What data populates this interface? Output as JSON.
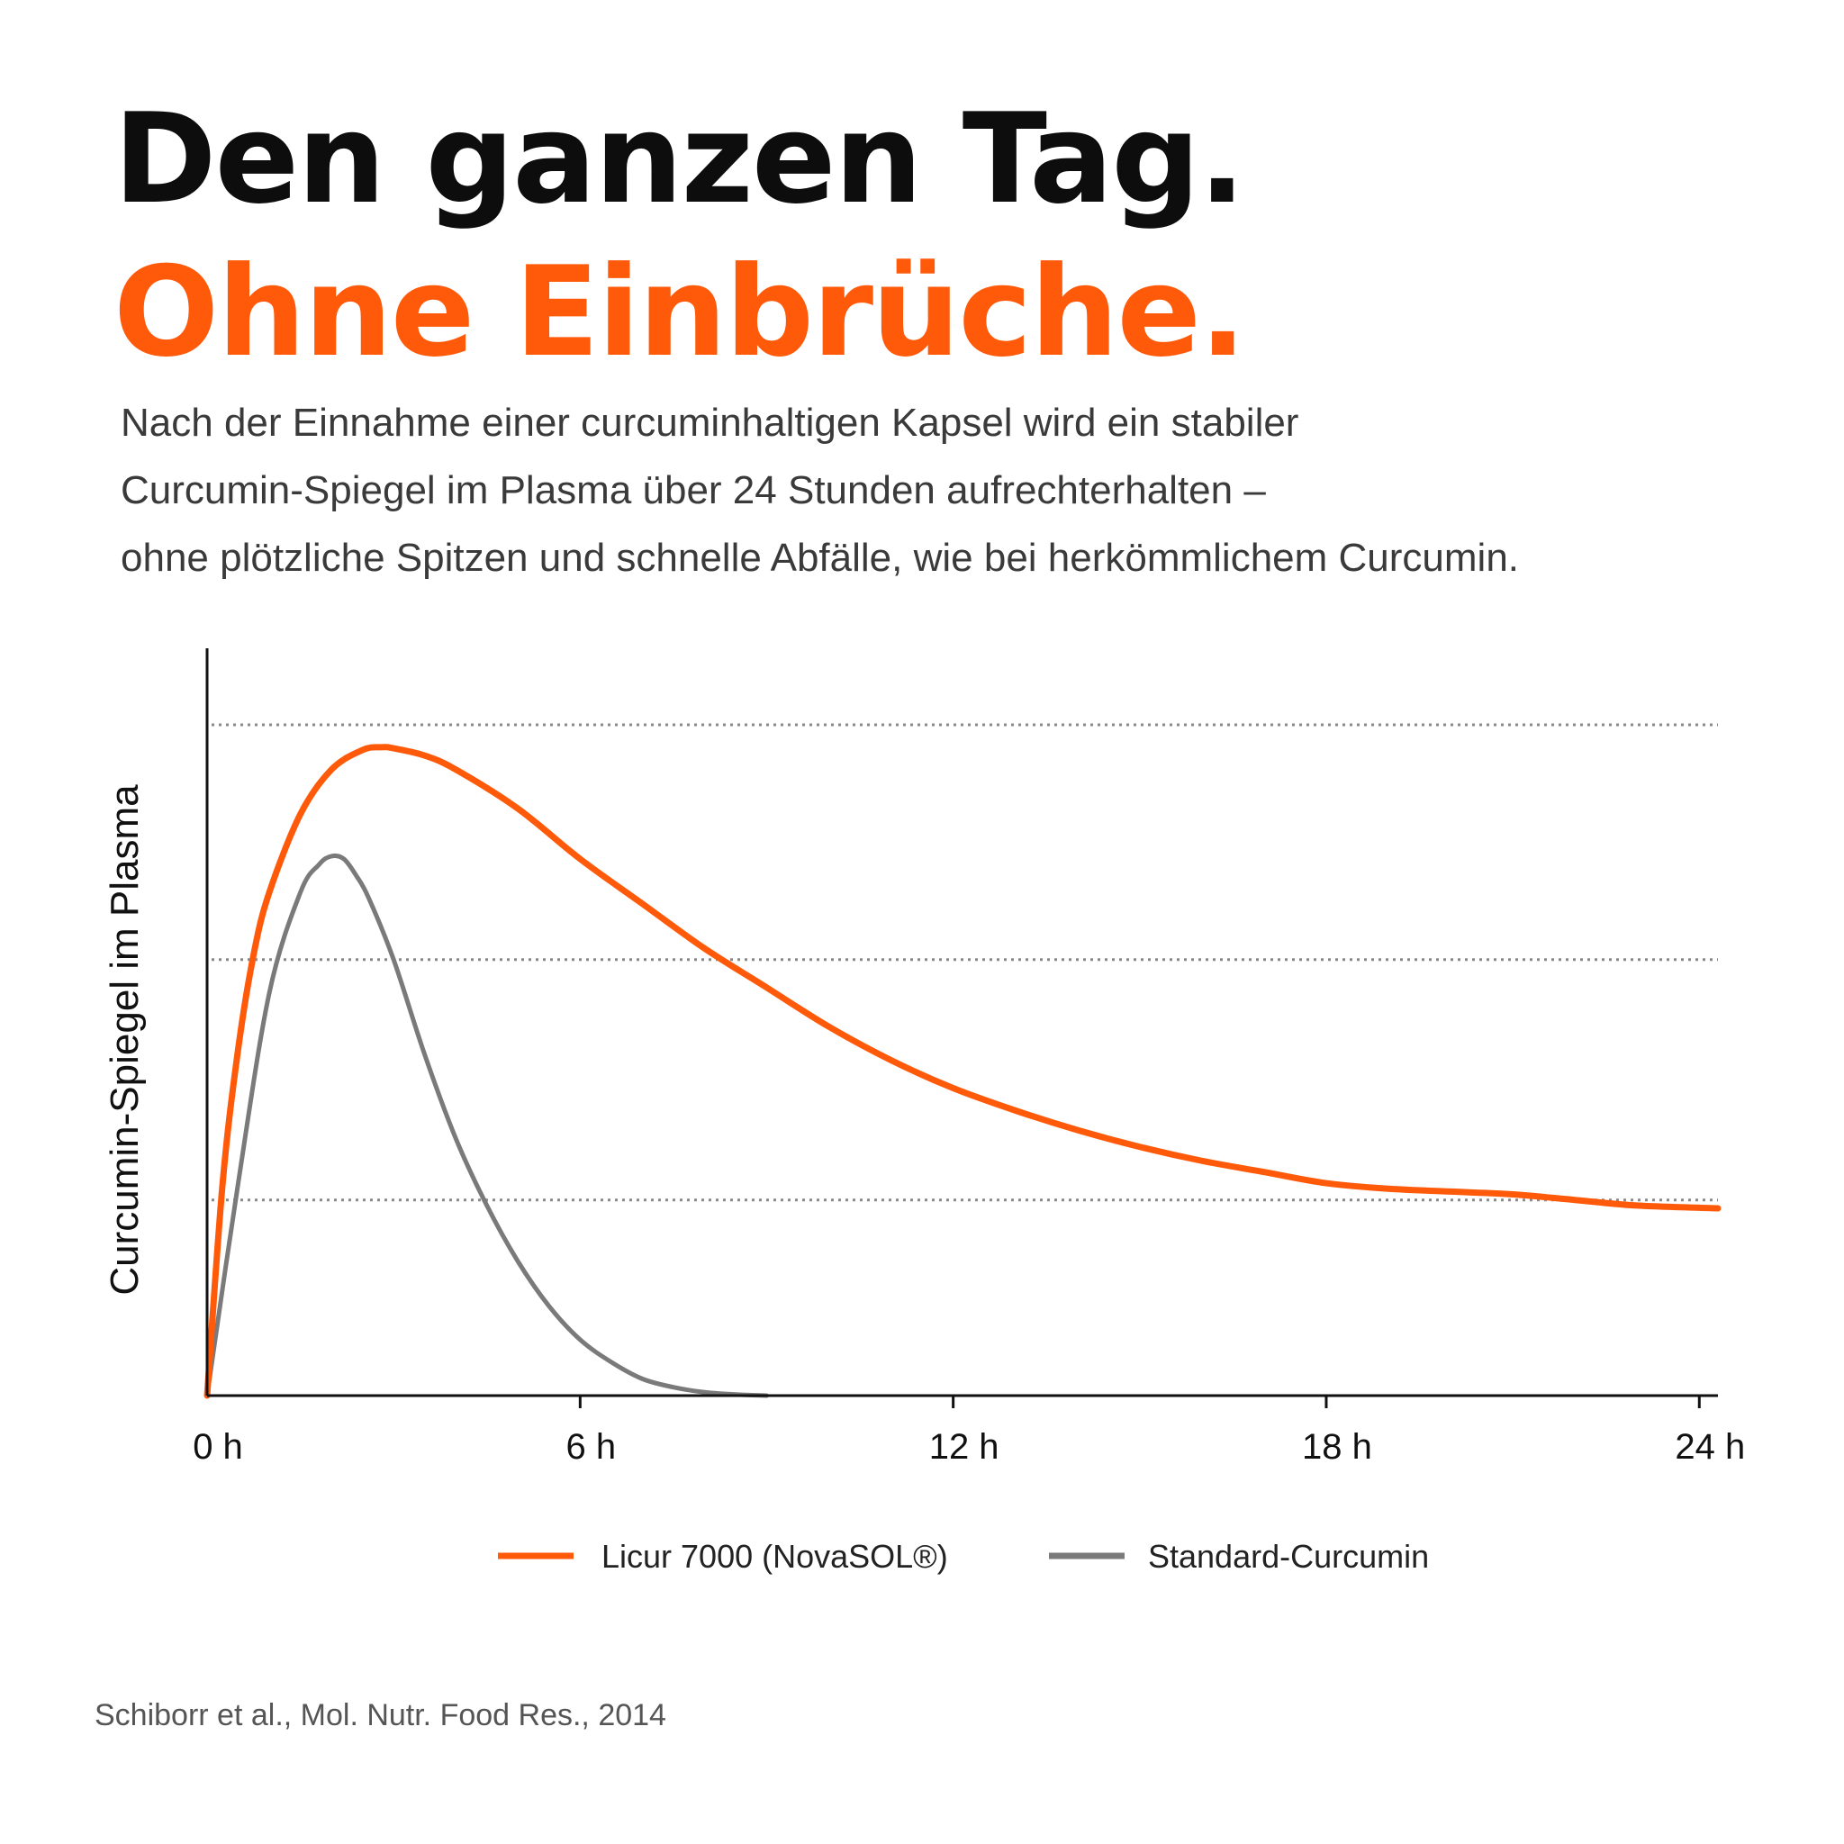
{
  "headline": {
    "line1": "Den ganzen Tag.",
    "line2": "Ohne Einbrüche."
  },
  "intro": [
    "Nach der Einnahme einer curcuminhaltigen Kapsel wird ein stabiler",
    "Curcumin-Spiegel im Plasma über 24 Stunden aufrechterhalten –",
    "ohne plötzliche Spitzen und schnelle Abfälle, wie bei herkömmlichem Curcumin."
  ],
  "source": "Schiborr et al., Mol. Nutr. Food Res., 2014",
  "colors": {
    "accent": "#ff5a0a",
    "standard": "#7a7a7a",
    "axis": "#111111",
    "grid": "#8a8a8a"
  },
  "chart_data": {
    "type": "line",
    "title": "",
    "xlabel": "",
    "ylabel": "Curcumin-Spiegel im Plasma",
    "xlim": [
      0,
      24.3
    ],
    "ylim": [
      0,
      1.2
    ],
    "x_ticks": [
      0,
      6,
      12,
      18,
      24
    ],
    "x_tick_labels": [
      "0 h",
      "6 h",
      "12 h",
      "18 h",
      "24 h"
    ],
    "y_gridlines": [
      0.35,
      0.78,
      1.2
    ],
    "y_ticks_shown": false,
    "grid": "horizontal-dotted",
    "legend_position": "bottom-center",
    "series": [
      {
        "name": "Licur 7000 (NovaSOL®)",
        "color": "#ff5a0a",
        "x": [
          0,
          0.25,
          0.5,
          0.75,
          1,
          1.5,
          2,
          2.5,
          2.8,
          3,
          3.5,
          4,
          5,
          6,
          7,
          8,
          9,
          10,
          11,
          12,
          13,
          14,
          15,
          16,
          17,
          18,
          19,
          20,
          21,
          22,
          23,
          24.3
        ],
        "y": [
          0,
          0.38,
          0.62,
          0.79,
          0.9,
          1.04,
          1.12,
          1.155,
          1.16,
          1.158,
          1.145,
          1.12,
          1.05,
          0.96,
          0.88,
          0.8,
          0.73,
          0.66,
          0.6,
          0.55,
          0.51,
          0.475,
          0.445,
          0.42,
          0.4,
          0.38,
          0.37,
          0.365,
          0.36,
          0.35,
          0.34,
          0.335
        ]
      },
      {
        "name": "Standard-Curcumin",
        "color": "#7a7a7a",
        "x": [
          0,
          0.5,
          1,
          1.5,
          1.8,
          2,
          2.2,
          2.4,
          2.6,
          3,
          3.5,
          4,
          4.5,
          5,
          5.5,
          6,
          6.5,
          7,
          7.5,
          8,
          8.5,
          9
        ],
        "y": [
          0,
          0.38,
          0.72,
          0.9,
          0.95,
          0.965,
          0.96,
          0.93,
          0.89,
          0.78,
          0.61,
          0.46,
          0.34,
          0.24,
          0.16,
          0.1,
          0.06,
          0.03,
          0.015,
          0.006,
          0.002,
          0
        ]
      }
    ]
  }
}
